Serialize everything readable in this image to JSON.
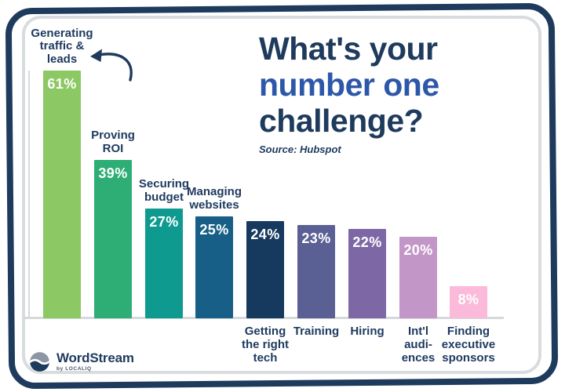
{
  "frame": {
    "outer_border_color": "#1e3a5c",
    "inner_border_color": "#d9dcdf",
    "card_background": "#ffffff"
  },
  "title": {
    "lines": [
      {
        "text": "What's your",
        "color": "#1e3a5c"
      },
      {
        "text": "number one",
        "color": "#2d57a9"
      },
      {
        "text": "challenge?",
        "color": "#1e3a5c"
      }
    ],
    "source": "Source: Hubspot"
  },
  "chart_data": {
    "type": "bar",
    "categories": [
      "Generating traffic & leads",
      "Proving ROI",
      "Securing budget",
      "Managing websites",
      "Getting the right tech",
      "Training",
      "Hiring",
      "Int'l audiences",
      "Finding executive sponsors"
    ],
    "values": [
      61,
      39,
      27,
      25,
      24,
      23,
      22,
      20,
      8
    ],
    "unit": "%",
    "display_labels": [
      "Generating\ntraffic &\nleads",
      "Proving\nROI",
      "Securing\nbudget",
      "Managing\nwebsites",
      "Getting\nthe right\ntech",
      "Training",
      "Hiring",
      "Int'l\naudi-\nences",
      "Finding\nexecutive\nsponsors"
    ],
    "label_position": [
      "above",
      "above",
      "above",
      "above",
      "below",
      "below",
      "below",
      "below",
      "below"
    ],
    "bar_colors": [
      "#8cc863",
      "#2ead74",
      "#0f9a90",
      "#175f87",
      "#16395e",
      "#5a5f94",
      "#7d68a5",
      "#c297c8",
      "#fbbad9"
    ],
    "value_label_color": "#ffffff",
    "label_color": "#1e3a5f",
    "axis_color": "#d6d9dc",
    "ylim": [
      0,
      65
    ],
    "grid": false,
    "legend": false,
    "title": "What's your number one challenge?",
    "annotation": "curved arrow pointing at 'Generating traffic & leads'"
  },
  "branding": {
    "icon": "wordstream-wave-icon",
    "name": "WordStream",
    "byline": "by LOCALIQ",
    "color": "#1e3a5c"
  }
}
